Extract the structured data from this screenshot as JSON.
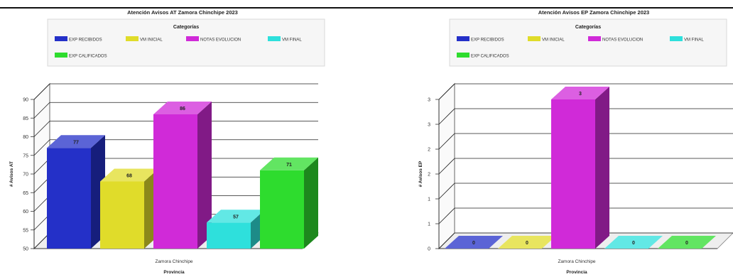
{
  "chart_data": [
    {
      "type": "bar",
      "title": "Atención Avisos AT Zamora Chinchipe 2023",
      "legend_title": "Categorías",
      "categories": [
        "Zamora Chinchipe"
      ],
      "xlabel": "Provincia",
      "ylabel": "# Avisos AT",
      "ylim": [
        50,
        90
      ],
      "yticks": [
        50,
        55,
        60,
        65,
        70,
        75,
        80,
        85,
        90
      ],
      "grid": true,
      "legend_position": "top",
      "series": [
        {
          "name": "EXP RECIBIDOS",
          "values": [
            77
          ],
          "color": "#2430c8"
        },
        {
          "name": "VM INICIAL",
          "values": [
            68
          ],
          "color": "#e0dc2a"
        },
        {
          "name": "NOTAS EVOLUCION",
          "values": [
            86
          ],
          "color": "#d02ad8"
        },
        {
          "name": "VM FINAL",
          "values": [
            57
          ],
          "color": "#2ee0dc"
        },
        {
          "name": "EXP CALIFICADOS",
          "values": [
            71
          ],
          "color": "#2edc2e"
        }
      ],
      "data_labels": [
        "77",
        "68",
        "86",
        "57",
        "71"
      ]
    },
    {
      "type": "bar",
      "title": "Atención Avisos EP Zamora Chinchipe 2023",
      "legend_title": "Categorías",
      "categories": [
        "Zamora Chinchipe"
      ],
      "xlabel": "Provincia",
      "ylabel": "# Avisos EP",
      "ylim": [
        0,
        3
      ],
      "yticks": [
        "0",
        "1",
        "1",
        "2",
        "2",
        "3",
        "3"
      ],
      "grid": true,
      "legend_position": "top",
      "series": [
        {
          "name": "EXP RECIBIDOS",
          "values": [
            0
          ],
          "color": "#2430c8"
        },
        {
          "name": "VM INICIAL",
          "values": [
            0
          ],
          "color": "#e0dc2a"
        },
        {
          "name": "NOTAS EVOLUCION",
          "values": [
            3
          ],
          "color": "#d02ad8"
        },
        {
          "name": "VM FINAL",
          "values": [
            0
          ],
          "color": "#2ee0dc"
        },
        {
          "name": "EXP CALIFICADOS",
          "values": [
            0
          ],
          "color": "#2edc2e"
        }
      ],
      "data_labels": [
        "0",
        "0",
        "3",
        "0",
        "0"
      ]
    }
  ]
}
